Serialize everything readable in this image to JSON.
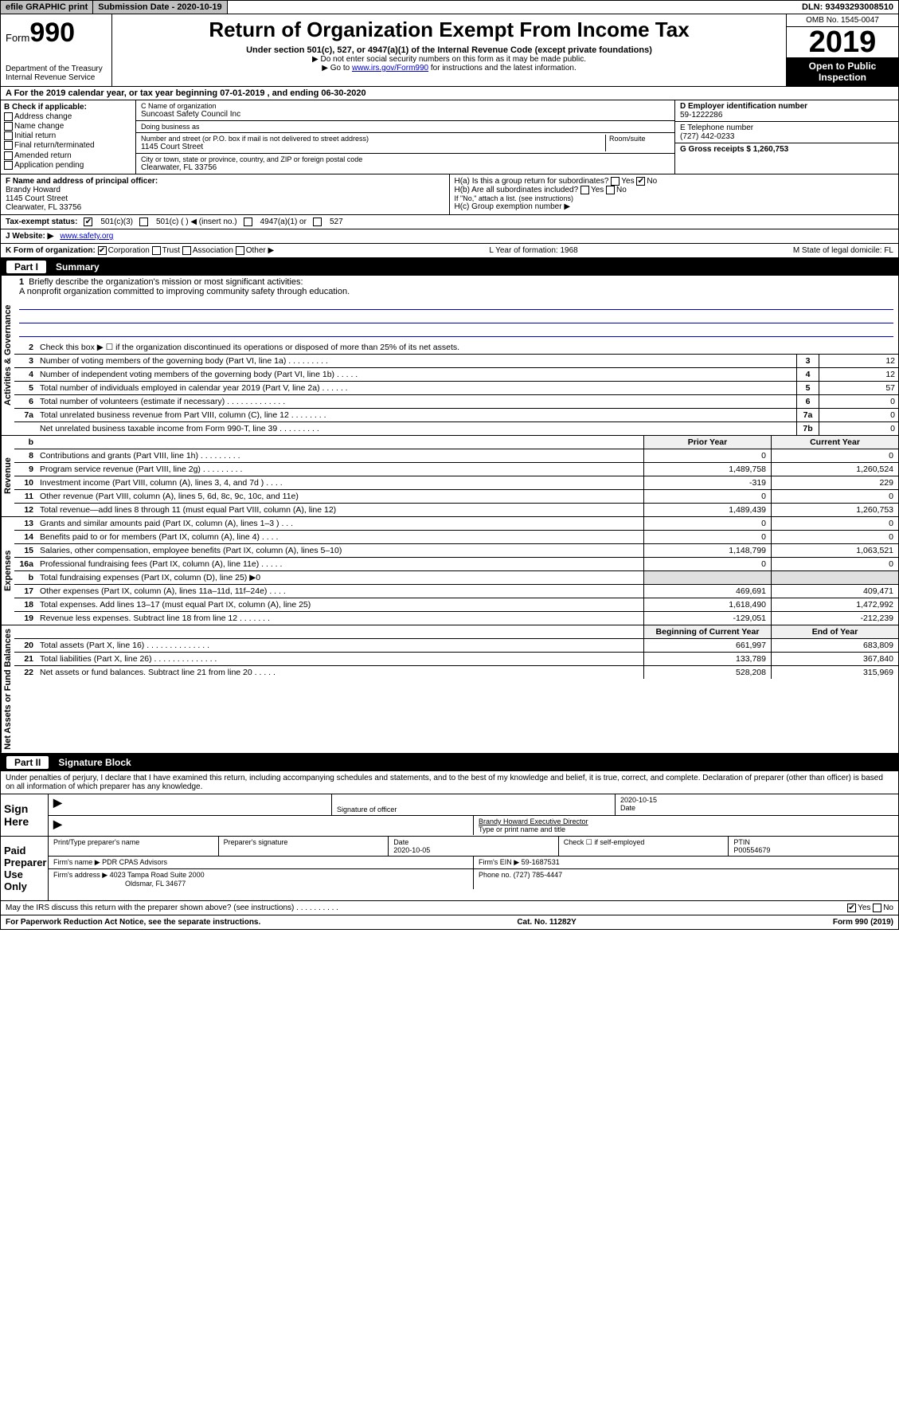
{
  "topbar": {
    "efile": "efile GRAPHIC print",
    "submission_label": "Submission Date - 2020-10-19",
    "dln": "DLN: 93493293008510"
  },
  "header": {
    "form_word": "Form",
    "form_no": "990",
    "title": "Return of Organization Exempt From Income Tax",
    "subtitle": "Under section 501(c), 527, or 4947(a)(1) of the Internal Revenue Code (except private foundations)",
    "note1": "▶ Do not enter social security numbers on this form as it may be made public.",
    "note2_pre": "▶ Go to ",
    "note2_link": "www.irs.gov/Form990",
    "note2_post": " for instructions and the latest information.",
    "omb": "OMB No. 1545-0047",
    "year": "2019",
    "inspection": "Open to Public Inspection",
    "dept": "Department of the Treasury\nInternal Revenue Service"
  },
  "period": "A   For the 2019 calendar year, or tax year beginning 07-01-2019    , and ending 06-30-2020",
  "colB": {
    "label": "B Check if applicable:",
    "opts": [
      "Address change",
      "Name change",
      "Initial return",
      "Final return/terminated",
      "Amended return",
      "Application pending"
    ]
  },
  "colC": {
    "name_label": "C Name of organization",
    "name": "Suncoast Safety Council Inc",
    "dba_label": "Doing business as",
    "dba": "",
    "addr_label": "Number and street (or P.O. box if mail is not delivered to street address)",
    "room_label": "Room/suite",
    "addr": "1145 Court Street",
    "city_label": "City or town, state or province, country, and ZIP or foreign postal code",
    "city": "Clearwater, FL  33756"
  },
  "colD": {
    "ein_label": "D Employer identification number",
    "ein": "59-1222286",
    "phone_label": "E Telephone number",
    "phone": "(727) 442-0233",
    "gross_label": "G Gross receipts $ 1,260,753"
  },
  "rowF": {
    "f_label": "F  Name and address of principal officer:",
    "f_name": "Brandy Howard",
    "f_addr1": "1145 Court Street",
    "f_addr2": "Clearwater, FL  33756",
    "ha": "H(a)  Is this a group return for subordinates?",
    "hb": "H(b)  Are all subordinates included?",
    "hb_note": "If \"No,\" attach a list. (see instructions)",
    "hc": "H(c)  Group exemption number ▶",
    "yes": "Yes",
    "no": "No"
  },
  "status": {
    "label": "Tax-exempt status:",
    "o1": "501(c)(3)",
    "o2": "501(c) (   ) ◀ (insert no.)",
    "o3": "4947(a)(1) or",
    "o4": "527"
  },
  "website": {
    "label": "J    Website: ▶",
    "url": "www.safety.org"
  },
  "korg": {
    "label": "K Form of organization:",
    "opts": [
      "Corporation",
      "Trust",
      "Association",
      "Other ▶"
    ],
    "l": "L Year of formation: 1968",
    "m": "M State of legal domicile: FL"
  },
  "part1": {
    "num": "Part I",
    "title": "Summary"
  },
  "mission": {
    "num": "1",
    "label": "Briefly describe the organization's mission or most significant activities:",
    "text": "A nonprofit organization committed to improving community safety through education."
  },
  "govlines": [
    {
      "n": "2",
      "d": "Check this box ▶ ☐  if the organization discontinued its operations or disposed of more than 25% of its net assets."
    },
    {
      "n": "3",
      "d": "Number of voting members of the governing body (Part VI, line 1a)   .    .    .    .    .    .    .    .    .",
      "b": "3",
      "v": "12"
    },
    {
      "n": "4",
      "d": "Number of independent voting members of the governing body (Part VI, line 1b)  .    .    .    .    .",
      "b": "4",
      "v": "12"
    },
    {
      "n": "5",
      "d": "Total number of individuals employed in calendar year 2019 (Part V, line 2a)  .    .    .    .    .    .",
      "b": "5",
      "v": "57"
    },
    {
      "n": "6",
      "d": "Total number of volunteers (estimate if necessary)  .    .    .    .    .    .    .    .    .    .    .    .    .",
      "b": "6",
      "v": "0"
    },
    {
      "n": "7a",
      "d": "Total unrelated business revenue from Part VIII, column (C), line 12  .    .    .    .    .    .    .    .",
      "b": "7a",
      "v": "0"
    },
    {
      "n": "",
      "d": "Net unrelated business taxable income from Form 990-T, line 39   .    .    .    .    .    .    .    .    .",
      "b": "7b",
      "v": "0"
    }
  ],
  "vlabels": {
    "gov": "Activities & Governance",
    "rev": "Revenue",
    "exp": "Expenses",
    "net": "Net Assets or\nFund Balances"
  },
  "twoColHead": {
    "b": "b",
    "prior": "Prior Year",
    "curr": "Current Year"
  },
  "revenue": [
    {
      "n": "8",
      "d": "Contributions and grants (Part VIII, line 1h)   .    .    .    .    .    .    .    .    .",
      "p": "0",
      "c": "0"
    },
    {
      "n": "9",
      "d": "Program service revenue (Part VIII, line 2g)   .    .    .    .    .    .    .    .    .",
      "p": "1,489,758",
      "c": "1,260,524"
    },
    {
      "n": "10",
      "d": "Investment income (Part VIII, column (A), lines 3, 4, and 7d )  .    .    .    .",
      "p": "-319",
      "c": "229"
    },
    {
      "n": "11",
      "d": "Other revenue (Part VIII, column (A), lines 5, 6d, 8c, 9c, 10c, and 11e)",
      "p": "0",
      "c": "0"
    },
    {
      "n": "12",
      "d": "Total revenue—add lines 8 through 11 (must equal Part VIII, column (A), line 12)",
      "p": "1,489,439",
      "c": "1,260,753"
    }
  ],
  "expenses": [
    {
      "n": "13",
      "d": "Grants and similar amounts paid (Part IX, column (A), lines 1–3 )  .    .    .",
      "p": "0",
      "c": "0"
    },
    {
      "n": "14",
      "d": "Benefits paid to or for members (Part IX, column (A), line 4)  .    .    .    .",
      "p": "0",
      "c": "0"
    },
    {
      "n": "15",
      "d": "Salaries, other compensation, employee benefits (Part IX, column (A), lines 5–10)",
      "p": "1,148,799",
      "c": "1,063,521"
    },
    {
      "n": "16a",
      "d": "Professional fundraising fees (Part IX, column (A), line 11e)  .    .    .    .    .",
      "p": "0",
      "c": "0"
    },
    {
      "n": "b",
      "d": "Total fundraising expenses (Part IX, column (D), line 25) ▶0",
      "p": "",
      "c": "",
      "gray": true
    },
    {
      "n": "17",
      "d": "Other expenses (Part IX, column (A), lines 11a–11d, 11f–24e)  .    .    .    .",
      "p": "469,691",
      "c": "409,471"
    },
    {
      "n": "18",
      "d": "Total expenses. Add lines 13–17 (must equal Part IX, column (A), line 25)",
      "p": "1,618,490",
      "c": "1,472,992"
    },
    {
      "n": "19",
      "d": "Revenue less expenses. Subtract line 18 from line 12   .    .    .    .    .    .    .",
      "p": "-129,051",
      "c": "-212,239"
    }
  ],
  "netHead": {
    "prior": "Beginning of Current Year",
    "curr": "End of Year"
  },
  "netassets": [
    {
      "n": "20",
      "d": "Total assets (Part X, line 16)  .    .    .    .    .    .    .    .    .    .    .    .    .    .",
      "p": "661,997",
      "c": "683,809"
    },
    {
      "n": "21",
      "d": "Total liabilities (Part X, line 26)  .    .    .    .    .    .    .    .    .    .    .    .    .    .",
      "p": "133,789",
      "c": "367,840"
    },
    {
      "n": "22",
      "d": "Net assets or fund balances. Subtract line 21 from line 20  .    .    .    .    .",
      "p": "528,208",
      "c": "315,969"
    }
  ],
  "part2": {
    "num": "Part II",
    "title": "Signature Block"
  },
  "perjury": "Under penalties of perjury, I declare that I have examined this return, including accompanying schedules and statements, and to the best of my knowledge and belief, it is true, correct, and complete. Declaration of preparer (other than officer) is based on all information of which preparer has any knowledge.",
  "sign": {
    "here": "Sign Here",
    "sig_label": "Signature of officer",
    "date": "2020-10-15",
    "date_label": "Date",
    "name": "Brandy Howard  Executive Director",
    "name_label": "Type or print name and title"
  },
  "paid": {
    "label": "Paid Preparer Use Only",
    "col1": "Print/Type preparer's name",
    "col2": "Preparer's signature",
    "col3_label": "Date",
    "col3": "2020-10-05",
    "col4": "Check ☐ if self-employed",
    "col5_label": "PTIN",
    "col5": "P00554679",
    "firm_name_label": "Firm's name    ▶",
    "firm_name": "PDR CPAS Advisors",
    "firm_ein_label": "Firm's EIN ▶",
    "firm_ein": "59-1687531",
    "firm_addr_label": "Firm's address ▶",
    "firm_addr1": "4023 Tampa Road Suite 2000",
    "firm_addr2": "Oldsmar, FL  34677",
    "phone_label": "Phone no.",
    "phone": "(727) 785-4447"
  },
  "discuss": {
    "q": "May the IRS discuss this return with the preparer shown above? (see instructions)   .    .    .    .    .    .    .    .    .    .",
    "yes": "Yes",
    "no": "No"
  },
  "footer": {
    "left": "For Paperwork Reduction Act Notice, see the separate instructions.",
    "mid": "Cat. No. 11282Y",
    "right": "Form 990 (2019)"
  }
}
